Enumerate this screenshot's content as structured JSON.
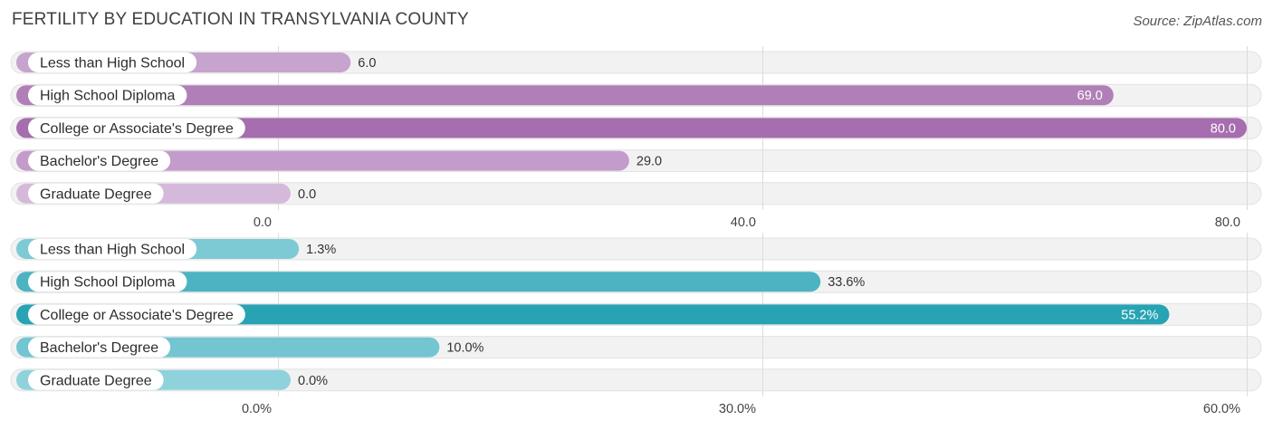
{
  "title": "FERTILITY BY EDUCATION IN TRANSYLVANIA COUNTY",
  "source": "Source: ZipAtlas.com",
  "chart_data": [
    {
      "type": "bar",
      "orientation": "horizontal",
      "categories": [
        "Less than High School",
        "High School Diploma",
        "College or Associate's Degree",
        "Bachelor's Degree",
        "Graduate Degree"
      ],
      "values": [
        6.0,
        69.0,
        80.0,
        29.0,
        0.0
      ],
      "value_labels": [
        "6.0",
        "69.0",
        "80.0",
        "29.0",
        "0.0"
      ],
      "xlim": [
        0,
        80
      ],
      "xticks": [
        0,
        40,
        80
      ],
      "xtick_labels": [
        "0.0",
        "40.0",
        "80.0"
      ],
      "colors": [
        "#c7a4ce",
        "#b17fb7",
        "#a66daf",
        "#c39ccb",
        "#d5b9da"
      ]
    },
    {
      "type": "bar",
      "orientation": "horizontal",
      "categories": [
        "Less than High School",
        "High School Diploma",
        "College or Associate's Degree",
        "Bachelor's Degree",
        "Graduate Degree"
      ],
      "values": [
        1.3,
        33.6,
        55.2,
        10.0,
        0.0
      ],
      "value_labels": [
        "1.3%",
        "33.6%",
        "55.2%",
        "10.0%",
        "0.0%"
      ],
      "xlim": [
        0,
        60
      ],
      "xticks": [
        0,
        30,
        60
      ],
      "xtick_labels": [
        "0.0%",
        "30.0%",
        "60.0%"
      ],
      "colors": [
        "#7dcad5",
        "#4db3c2",
        "#27a3b4",
        "#72c5d1",
        "#8fd2dc"
      ]
    }
  ]
}
